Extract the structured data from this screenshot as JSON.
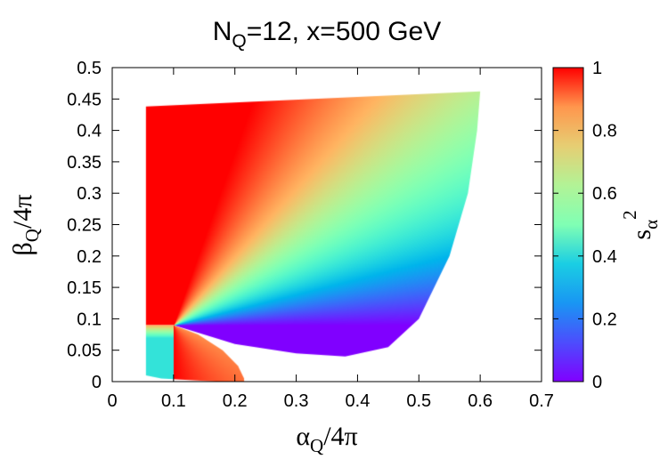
{
  "chart_data": {
    "type": "heatmap",
    "title": {
      "base": "N",
      "sub": "Q",
      "rest": "=12, x=500 GeV"
    },
    "xlabel": {
      "sym": "α",
      "sub": "Q",
      "rest": "/4π"
    },
    "ylabel": {
      "sym": "β",
      "sub": "Q",
      "rest": "/4π"
    },
    "colorbar_label": {
      "base": "s",
      "sub": "α",
      "sup": "2"
    },
    "xlim": [
      0,
      0.7
    ],
    "ylim": [
      0,
      0.5
    ],
    "zlim": [
      0,
      1
    ],
    "xticks": [
      "0",
      "0.1",
      "0.2",
      "0.3",
      "0.4",
      "0.5",
      "0.6",
      "0.7"
    ],
    "yticks": [
      "0",
      "0.05",
      "0.1",
      "0.15",
      "0.2",
      "0.25",
      "0.3",
      "0.35",
      "0.4",
      "0.45",
      "0.5"
    ],
    "cbticks": [
      "0",
      "0.2",
      "0.4",
      "0.6",
      "0.8",
      "1"
    ],
    "palette": "rainbow",
    "singular_point": [
      0.1,
      0.09
    ],
    "region_main": {
      "left_x": 0.055,
      "upper_edge": [
        [
          0.055,
          0.438
        ],
        [
          0.6,
          0.462
        ]
      ],
      "lower_edge": [
        [
          0.1,
          0.09
        ],
        [
          0.2,
          0.06
        ],
        [
          0.3,
          0.045
        ],
        [
          0.38,
          0.04
        ],
        [
          0.45,
          0.055
        ],
        [
          0.5,
          0.1
        ],
        [
          0.55,
          0.2
        ],
        [
          0.58,
          0.3
        ],
        [
          0.595,
          0.4
        ],
        [
          0.6,
          0.462
        ]
      ]
    },
    "region_lower": {
      "boundary": [
        [
          0.055,
          0.01
        ],
        [
          0.055,
          0.09
        ],
        [
          0.1,
          0.09
        ],
        [
          0.14,
          0.075
        ],
        [
          0.18,
          0.05
        ],
        [
          0.205,
          0.025
        ],
        [
          0.215,
          0.005
        ],
        [
          0.215,
          0.0
        ],
        [
          0.17,
          0.0
        ],
        [
          0.08,
          0.005
        ]
      ]
    }
  }
}
